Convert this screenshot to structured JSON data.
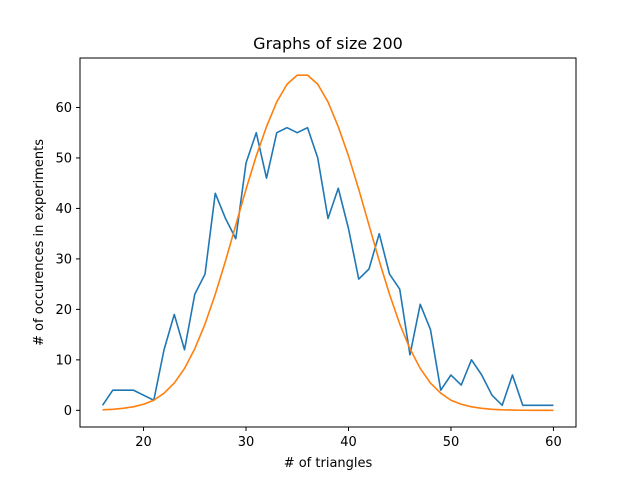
{
  "chart_data": {
    "type": "line",
    "title": "Graphs of size 200",
    "xlabel": "# of triangles",
    "ylabel": "# of occurences in experiments",
    "xlim": [
      13.8,
      62.2
    ],
    "ylim": [
      -3.3,
      69.8
    ],
    "xticks": [
      20,
      30,
      40,
      50,
      60
    ],
    "yticks": [
      0,
      10,
      20,
      30,
      40,
      50,
      60
    ],
    "grid": false,
    "legend": "none",
    "series": [
      {
        "color": "#1f77b4",
        "x": [
          16,
          17,
          18,
          19,
          20,
          21,
          22,
          23,
          24,
          25,
          26,
          27,
          28,
          29,
          30,
          31,
          32,
          33,
          34,
          35,
          36,
          37,
          38,
          39,
          40,
          41,
          42,
          43,
          44,
          45,
          46,
          47,
          48,
          49,
          50,
          51,
          52,
          53,
          54,
          55,
          56,
          57,
          58,
          59,
          60
        ],
        "y": [
          1,
          4,
          4,
          4,
          3,
          2,
          12,
          19,
          12,
          23,
          27,
          43,
          38,
          34,
          49,
          55,
          46,
          55,
          56,
          55,
          56,
          50,
          38,
          44,
          36,
          26,
          28,
          35,
          27,
          24,
          11,
          21,
          16,
          4,
          7,
          5,
          10,
          7,
          3,
          1,
          7,
          1,
          1,
          1,
          1
        ]
      },
      {
        "color": "#ff7f0e",
        "x": [
          16,
          17,
          18,
          19,
          20,
          21,
          22,
          23,
          24,
          25,
          26,
          27,
          28,
          29,
          30,
          31,
          32,
          33,
          34,
          35,
          36,
          37,
          38,
          39,
          40,
          41,
          42,
          43,
          44,
          45,
          46,
          47,
          48,
          49,
          50,
          51,
          52,
          53,
          54,
          55,
          56,
          57,
          58,
          59,
          60
        ],
        "y": [
          0.1,
          0.2,
          0.4,
          0.7,
          1.2,
          2,
          3.4,
          5.4,
          8.3,
          12.2,
          17.1,
          23,
          29.6,
          36.7,
          43.8,
          50.4,
          56.2,
          61.1,
          64.6,
          66.4,
          66.4,
          64.6,
          61.1,
          56.2,
          50.4,
          43.8,
          36.7,
          29.6,
          23,
          17.1,
          12.2,
          8.3,
          5.4,
          3.4,
          2,
          1.2,
          0.7,
          0.4,
          0.2,
          0.1,
          0.05,
          0.02,
          0.01,
          0.01,
          0
        ]
      }
    ]
  }
}
